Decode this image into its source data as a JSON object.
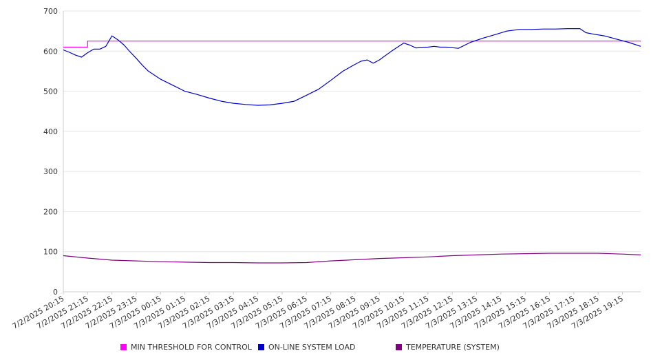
{
  "chart_data": {
    "type": "line",
    "ylim": [
      0,
      700
    ],
    "yticks": [
      0,
      100,
      200,
      300,
      400,
      500,
      600,
      700
    ],
    "grid": true,
    "legend_position": "bottom",
    "categories": [
      "7/2/2025 20:15",
      "7/2/2025 21:15",
      "7/2/2025 22:15",
      "7/2/2025 23:15",
      "7/3/2025 00:15",
      "7/3/2025 01:15",
      "7/3/2025 02:15",
      "7/3/2025 03:15",
      "7/3/2025 04:15",
      "7/3/2025 05:15",
      "7/3/2025 06:15",
      "7/3/2025 07:15",
      "7/3/2025 08:15",
      "7/3/2025 09:15",
      "7/3/2025 10:15",
      "7/3/2025 11:15",
      "7/3/2025 12:15",
      "7/3/2025 13:15",
      "7/3/2025 14:15",
      "7/3/2025 15:15",
      "7/3/2025 16:15",
      "7/3/2025 17:15",
      "7/3/2025 18:15",
      "7/3/2025 19:15"
    ],
    "series": [
      {
        "name": "MIN THRESHOLD FOR CONTROL",
        "color": "#ff00ff",
        "x": [
          "7/2/2025 20:15",
          "7/2/2025 21:15",
          "7/2/2025 21:15",
          "7/3/2025 19:15",
          "7/3/2025 20:00"
        ],
        "values": [
          610,
          610,
          625,
          625,
          625
        ]
      },
      {
        "name": "ON-LINE SYSTEM LOAD",
        "color": "#0000cc",
        "x": [
          "7/2/2025 20:15",
          "7/2/2025 20:30",
          "7/2/2025 20:45",
          "7/2/2025 21:00",
          "7/2/2025 21:15",
          "7/2/2025 21:30",
          "7/2/2025 21:45",
          "7/2/2025 22:00",
          "7/2/2025 22:15",
          "7/2/2025 22:30",
          "7/2/2025 22:45",
          "7/2/2025 23:00",
          "7/2/2025 23:15",
          "7/2/2025 23:30",
          "7/2/2025 23:45",
          "7/3/2025 00:00",
          "7/3/2025 00:15",
          "7/3/2025 00:45",
          "7/3/2025 01:15",
          "7/3/2025 01:45",
          "7/3/2025 02:15",
          "7/3/2025 02:45",
          "7/3/2025 03:15",
          "7/3/2025 03:45",
          "7/3/2025 04:15",
          "7/3/2025 04:45",
          "7/3/2025 05:15",
          "7/3/2025 05:45",
          "7/3/2025 06:15",
          "7/3/2025 06:45",
          "7/3/2025 07:15",
          "7/3/2025 07:45",
          "7/3/2025 08:15",
          "7/3/2025 08:30",
          "7/3/2025 08:45",
          "7/3/2025 09:00",
          "7/3/2025 09:15",
          "7/3/2025 09:45",
          "7/3/2025 10:15",
          "7/3/2025 10:30",
          "7/3/2025 10:45",
          "7/3/2025 11:15",
          "7/3/2025 11:30",
          "7/3/2025 11:45",
          "7/3/2025 12:00",
          "7/3/2025 12:30",
          "7/3/2025 13:00",
          "7/3/2025 13:30",
          "7/3/2025 14:00",
          "7/3/2025 14:30",
          "7/3/2025 15:00",
          "7/3/2025 15:30",
          "7/3/2025 16:00",
          "7/3/2025 16:30",
          "7/3/2025 17:00",
          "7/3/2025 17:30",
          "7/3/2025 17:45",
          "7/3/2025 18:00",
          "7/3/2025 18:30",
          "7/3/2025 19:00",
          "7/3/2025 19:30",
          "7/3/2025 20:00"
        ],
        "values": [
          603,
          597,
          590,
          585,
          596,
          605,
          605,
          612,
          638,
          628,
          615,
          598,
          582,
          565,
          550,
          540,
          530,
          515,
          500,
          492,
          483,
          475,
          470,
          467,
          465,
          466,
          470,
          475,
          490,
          505,
          527,
          550,
          567,
          575,
          578,
          570,
          578,
          600,
          620,
          615,
          608,
          610,
          612,
          610,
          610,
          607,
          622,
          632,
          641,
          650,
          654,
          654,
          655,
          655,
          656,
          656,
          646,
          643,
          638,
          630,
          622,
          612
        ]
      },
      {
        "name": "TEMPERATURE (SYSTEM)",
        "color": "#800080",
        "x": [
          "7/2/2025 20:15",
          "7/2/2025 21:15",
          "7/2/2025 22:15",
          "7/2/2025 23:15",
          "7/3/2025 00:15",
          "7/3/2025 01:15",
          "7/3/2025 02:15",
          "7/3/2025 03:15",
          "7/3/2025 04:15",
          "7/3/2025 05:15",
          "7/3/2025 06:15",
          "7/3/2025 07:15",
          "7/3/2025 08:15",
          "7/3/2025 09:15",
          "7/3/2025 10:15",
          "7/3/2025 11:15",
          "7/3/2025 12:15",
          "7/3/2025 13:15",
          "7/3/2025 14:15",
          "7/3/2025 15:15",
          "7/3/2025 16:15",
          "7/3/2025 17:15",
          "7/3/2025 18:15",
          "7/3/2025 19:15",
          "7/3/2025 20:00"
        ],
        "values": [
          90,
          84,
          79,
          77,
          75,
          74,
          73,
          73,
          72,
          72,
          73,
          77,
          80,
          83,
          85,
          87,
          90,
          92,
          94,
          95,
          96,
          96,
          96,
          94,
          92
        ]
      }
    ]
  }
}
